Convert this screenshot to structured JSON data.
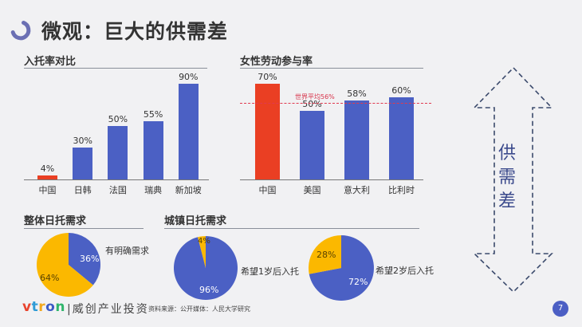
{
  "header": {
    "title": "微观：巨大的供需差"
  },
  "colors": {
    "blue": "#4b60c4",
    "red": "#ea3f23",
    "yellow": "#fbb800",
    "logo_ring": "#6b6fb3",
    "arrow": "#3b4a6c"
  },
  "sections": {
    "enrollment": "入托率对比",
    "female_labor": "女性劳动参与率",
    "overall_demand": "整体日托需求",
    "urban_demand": "城镇日托需求"
  },
  "side_arrow": {
    "label": "供需差"
  },
  "footer": {
    "brand_mark": "vtron",
    "brand_name": "|威创产业投资",
    "source": "资料来源：公开媒体：人民大学研究",
    "page": "7"
  },
  "chart_data": [
    {
      "type": "bar",
      "title": "入托率对比",
      "categories": [
        "中国",
        "日韩",
        "法国",
        "瑞典",
        "新加坡"
      ],
      "values": [
        4,
        30,
        50,
        55,
        90
      ],
      "labels": [
        "4%",
        "30%",
        "50%",
        "55%",
        "90%"
      ],
      "colors": [
        "#ea3f23",
        "#4b60c4",
        "#4b60c4",
        "#4b60c4",
        "#4b60c4"
      ],
      "ylim": [
        0,
        100
      ],
      "grid": false,
      "xlabel": "",
      "ylabel": ""
    },
    {
      "type": "bar",
      "title": "女性劳动参与率",
      "categories": [
        "中国",
        "美国",
        "意大利",
        "比利时"
      ],
      "values": [
        70,
        50,
        58,
        60
      ],
      "labels": [
        "70%",
        "50%",
        "58%",
        "60%"
      ],
      "colors": [
        "#ea3f23",
        "#4b60c4",
        "#4b60c4",
        "#4b60c4"
      ],
      "reference_line": {
        "value": 56,
        "label": "世界平均56%",
        "style": "dashed",
        "color": "#e0394f"
      },
      "ylim": [
        0,
        80
      ],
      "grid": false,
      "xlabel": "",
      "ylabel": ""
    },
    {
      "type": "pie",
      "title": "整体日托需求",
      "slices": [
        {
          "label": "有明确需求",
          "value": 36,
          "text": "36%",
          "color": "#4b60c4"
        },
        {
          "label": "",
          "value": 64,
          "text": "64%",
          "color": "#fbb800"
        }
      ],
      "annotation": "有明确需求"
    },
    {
      "type": "pie",
      "title": "城镇日托需求",
      "slices": [
        {
          "label": "希望1岁后入托",
          "value": 96,
          "text": "96%",
          "color": "#4b60c4"
        },
        {
          "label": "",
          "value": 4,
          "text": "4%",
          "color": "#fbb800"
        }
      ],
      "annotation": "希望1岁后入托"
    },
    {
      "type": "pie",
      "title": "城镇日托需求",
      "slices": [
        {
          "label": "希望2岁后入托",
          "value": 72,
          "text": "72%",
          "color": "#4b60c4"
        },
        {
          "label": "",
          "value": 28,
          "text": "28%",
          "color": "#fbb800"
        }
      ],
      "annotation": "希望2岁后入托"
    }
  ]
}
